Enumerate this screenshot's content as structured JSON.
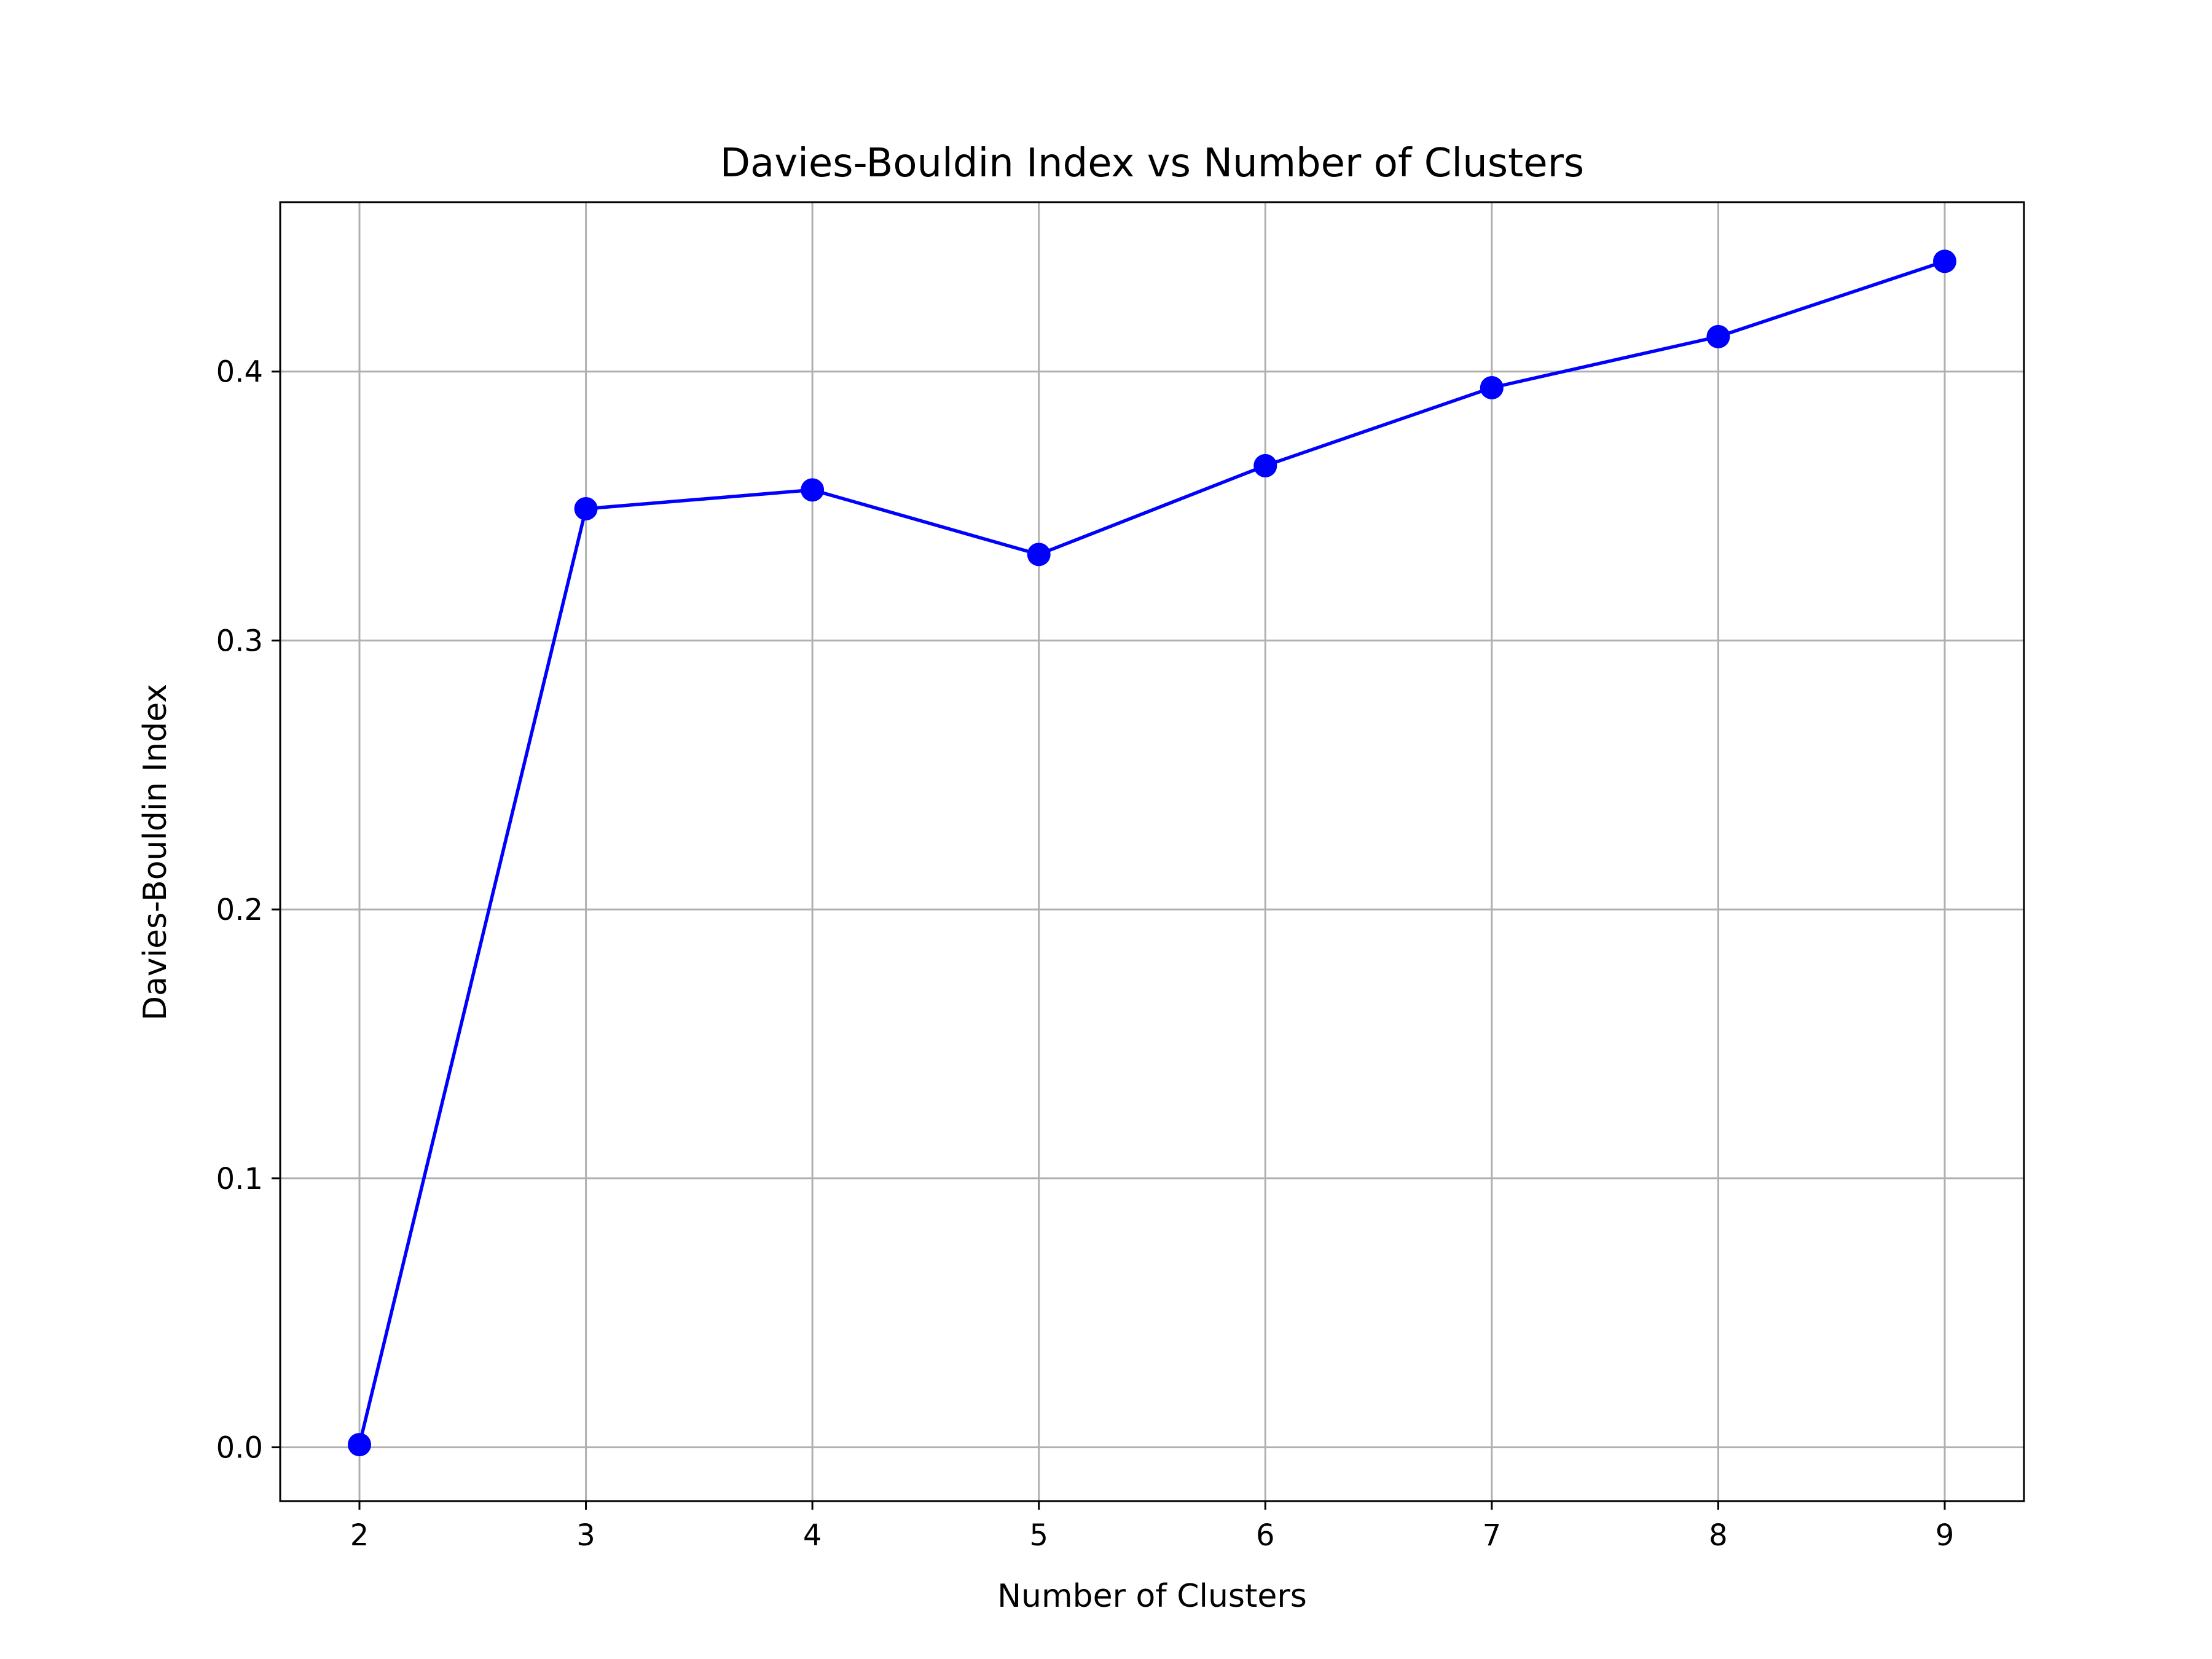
{
  "chart_data": {
    "type": "line",
    "title": "Davies-Bouldin Index vs Number of Clusters",
    "xlabel": "Number of Clusters",
    "ylabel": "Davies-Bouldin Index",
    "x": [
      2,
      3,
      4,
      5,
      6,
      7,
      8,
      9
    ],
    "x_ticks": [
      "2",
      "3",
      "4",
      "5",
      "6",
      "7",
      "8",
      "9"
    ],
    "y_ticks": [
      "0.0",
      "0.1",
      "0.2",
      "0.3",
      "0.4"
    ],
    "y_tick_values": [
      0.0,
      0.1,
      0.2,
      0.3,
      0.4
    ],
    "xlim": [
      1.65,
      9.35
    ],
    "ylim": [
      -0.02,
      0.463
    ],
    "grid": true,
    "series": [
      {
        "values": [
          0.001,
          0.349,
          0.356,
          0.332,
          0.365,
          0.394,
          0.413,
          0.441
        ],
        "color": "#0000ff",
        "marker": "circle"
      }
    ]
  }
}
